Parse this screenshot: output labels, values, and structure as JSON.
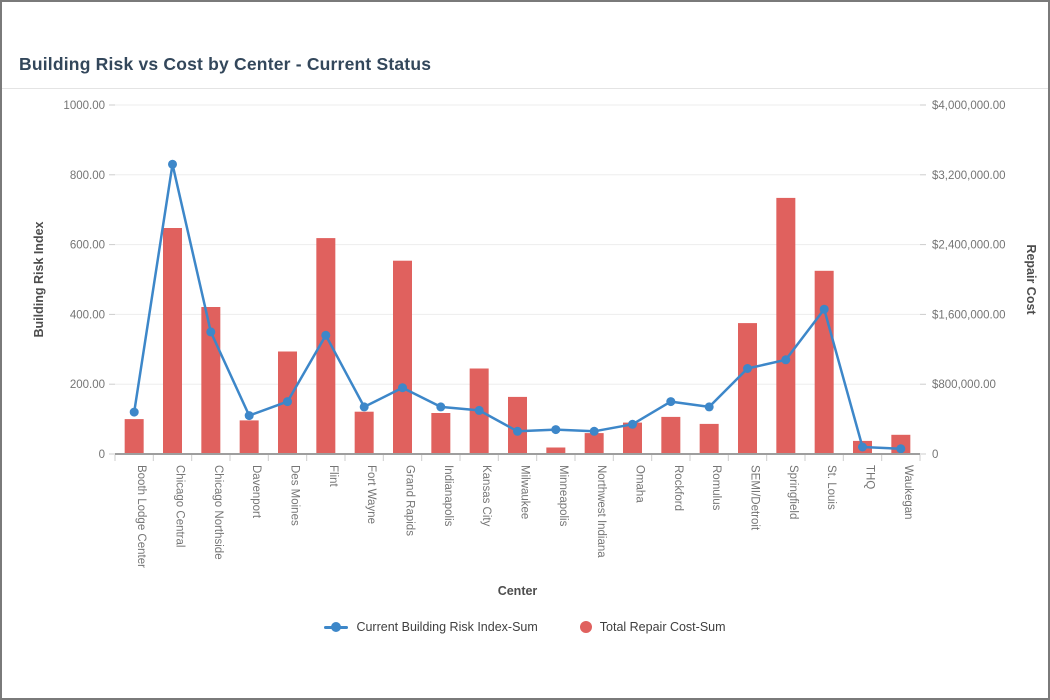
{
  "window": {
    "background": "#ffffff",
    "border_color": "#7a7a7a"
  },
  "header": {
    "title": "Building Risk vs Cost by Center - Current Status"
  },
  "chart_data": {
    "type": "combo-bar-line",
    "title": "Building Risk vs Cost by Center - Current Status",
    "categories": [
      "Booth Lodge Center",
      "Chicago Central",
      "Chicago Northside",
      "Davenport",
      "Des Moines",
      "Flint",
      "Fort Wayne",
      "Grand Rapids",
      "Indianapolis",
      "Kansas City",
      "Milwaukee",
      "Minneapolis",
      "Northwest Indiana",
      "Omaha",
      "Rockford",
      "Romulus",
      "SEMI/Detroit",
      "Springfield",
      "St. Louis",
      "THQ",
      "Waukegan"
    ],
    "series": [
      {
        "name": "Current Building Risk Index-Sum",
        "type": "line",
        "axis": "left",
        "color": "#3d87c9",
        "values": [
          120,
          830,
          350,
          110,
          150,
          340,
          135,
          190,
          135,
          125,
          65,
          70,
          65,
          85,
          150,
          135,
          245,
          270,
          415,
          20,
          15
        ]
      },
      {
        "name": "Total Repair Cost-Sum",
        "type": "bar",
        "axis": "right",
        "color": "#e0615e",
        "values": [
          400000,
          2590000,
          1685000,
          385000,
          1175000,
          2475000,
          485000,
          2215000,
          470000,
          980000,
          655000,
          75000,
          240000,
          360000,
          425000,
          345000,
          1500000,
          2935000,
          2100000,
          150000,
          220000
        ]
      }
    ],
    "x_axis": {
      "label": "Center"
    },
    "left_axis": {
      "label": "Building Risk Index",
      "max": 1000,
      "ticks": [
        {
          "value": 0,
          "label": "0"
        },
        {
          "value": 200,
          "label": "200.00"
        },
        {
          "value": 400,
          "label": "400.00"
        },
        {
          "value": 600,
          "label": "600.00"
        },
        {
          "value": 800,
          "label": "800.00"
        },
        {
          "value": 1000,
          "label": "1000.00"
        }
      ]
    },
    "right_axis": {
      "label": "Repair Cost",
      "max": 4000000,
      "ticks": [
        {
          "value": 0,
          "label": "0"
        },
        {
          "value": 800000,
          "label": "$800,000.00"
        },
        {
          "value": 1600000,
          "label": "$1,600,000.00"
        },
        {
          "value": 2400000,
          "label": "$2,400,000.00"
        },
        {
          "value": 3200000,
          "label": "$3,200,000.00"
        },
        {
          "value": 4000000,
          "label": "$4,000,000.00"
        }
      ]
    },
    "grid": true,
    "legend_position": "bottom"
  },
  "colors": {
    "grid_line": "#ededed",
    "axis_line": "#9e9e9e",
    "tick_mark": "#cccccc",
    "tick_label": "#757575",
    "axis_title": "#4d4d4d",
    "title": "#33475b",
    "line_series": "#3d87c9",
    "bar_series": "#e0615e"
  }
}
